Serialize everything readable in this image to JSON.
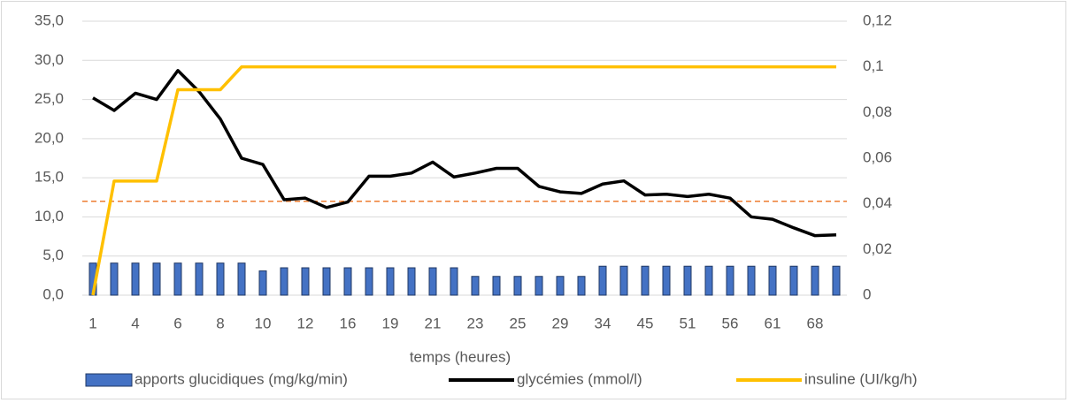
{
  "chart_data": {
    "type": "bar",
    "x_label": "temps (heures)",
    "categories": [
      "1",
      null,
      "4",
      null,
      "6",
      null,
      "8",
      null,
      "10",
      null,
      "12",
      null,
      "16",
      null,
      "19",
      null,
      "21",
      null,
      "23",
      null,
      "25",
      null,
      "29",
      null,
      "34",
      null,
      "45",
      null,
      "51",
      null,
      "56",
      null,
      "61",
      null,
      "68",
      null
    ],
    "series": [
      {
        "name": "apports glucidiques (mg/kg/min)",
        "type": "bar",
        "color": "#4472c4",
        "edge": "#203864",
        "values": [
          4.1,
          4.1,
          4.1,
          4.1,
          4.1,
          4.1,
          4.1,
          4.1,
          3.1,
          3.5,
          3.5,
          3.5,
          3.5,
          3.5,
          3.5,
          3.5,
          3.5,
          3.5,
          2.4,
          2.4,
          2.4,
          2.4,
          2.4,
          2.4,
          3.7,
          3.7,
          3.7,
          3.7,
          3.7,
          3.7,
          3.7,
          3.7,
          3.7,
          3.7,
          3.7,
          3.7
        ]
      },
      {
        "name": "glycémies (mmol/l)",
        "type": "line",
        "color": "#000000",
        "values": [
          25.2,
          23.6,
          25.8,
          25.0,
          28.7,
          26.0,
          22.5,
          17.5,
          16.7,
          12.2,
          12.4,
          11.2,
          11.9,
          15.2,
          15.2,
          15.6,
          17.0,
          15.1,
          15.6,
          16.2,
          16.2,
          13.9,
          13.2,
          13.0,
          14.2,
          14.6,
          12.8,
          12.9,
          12.6,
          12.9,
          12.4,
          10.0,
          9.7,
          8.6,
          7.6,
          7.7
        ]
      },
      {
        "name": "insuline (UI/kg/h)",
        "type": "line",
        "axis": "y2",
        "color": "#ffc000",
        "values": [
          0,
          0.05,
          0.05,
          0.05,
          0.09,
          0.09,
          0.09,
          0.1,
          0.1,
          0.1,
          0.1,
          0.1,
          0.1,
          0.1,
          0.1,
          0.1,
          0.1,
          0.1,
          0.1,
          0.1,
          0.1,
          0.1,
          0.1,
          0.1,
          0.1,
          0.1,
          0.1,
          0.1,
          0.1,
          0.1,
          0.1,
          0.1,
          0.1,
          0.1,
          0.1,
          0.1
        ]
      }
    ],
    "reference_line": {
      "value": 12,
      "color": "#ed7d31"
    },
    "ylim": [
      0,
      35
    ],
    "yticks": [
      {
        "value": 0,
        "label": "0,0"
      },
      {
        "value": 5,
        "label": "5,0"
      },
      {
        "value": 10,
        "label": "10,0"
      },
      {
        "value": 15,
        "label": "15,0"
      },
      {
        "value": 20,
        "label": "20,0"
      },
      {
        "value": 25,
        "label": "25,0"
      },
      {
        "value": 30,
        "label": "30,0"
      },
      {
        "value": 35,
        "label": "35,0"
      }
    ],
    "y2lim": [
      0,
      0.12
    ],
    "y2ticks": [
      0,
      {
        "value": 0.02,
        "label": "0,02"
      },
      {
        "value": 0.04,
        "label": "0,04"
      },
      {
        "value": 0.06,
        "label": "0,06"
      },
      {
        "value": 0.08,
        "label": "0,08"
      },
      {
        "value": 0.1,
        "label": "0,1"
      },
      {
        "value": 0.12,
        "label": "0,12"
      }
    ],
    "grid": true,
    "legend": "bottom"
  }
}
